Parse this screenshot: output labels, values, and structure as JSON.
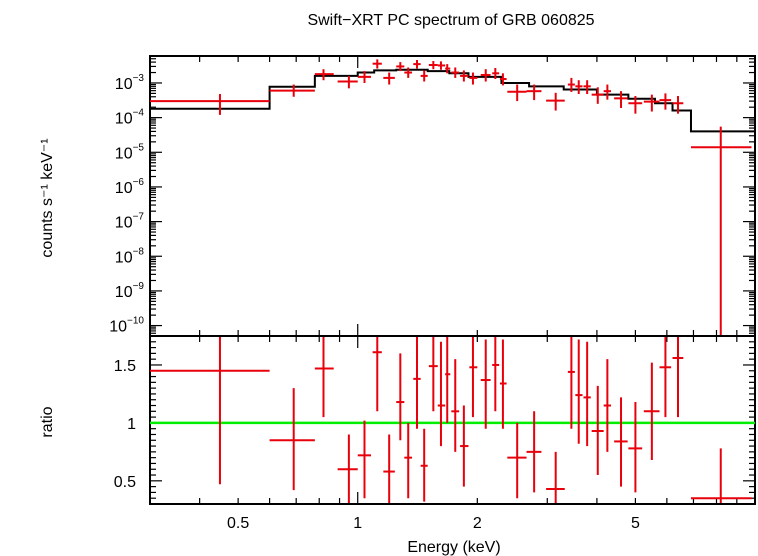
{
  "chart_data": [
    {
      "type": "scatter",
      "title": "Swift−XRT PC spectrum of GRB 060825",
      "ylabel": "counts s⁻¹ keV⁻¹",
      "xlabel": "",
      "x_scale": "log",
      "y_scale": "log",
      "xlim": [
        0.3,
        10
      ],
      "ylim": [
        5e-11,
        0.006
      ],
      "y_ticks": [
        {
          "value": 0.001,
          "base": "10",
          "exp": "−3"
        },
        {
          "value": 0.0001,
          "base": "10",
          "exp": "−4"
        },
        {
          "value": 1e-05,
          "base": "10",
          "exp": "−5"
        },
        {
          "value": 1e-06,
          "base": "10",
          "exp": "−6"
        },
        {
          "value": 1e-07,
          "base": "10",
          "exp": "−7"
        },
        {
          "value": 1e-08,
          "base": "10",
          "exp": "−8"
        },
        {
          "value": 1e-09,
          "base": "10",
          "exp": "−9"
        },
        {
          "value": 1e-10,
          "base": "10",
          "exp": "−10"
        }
      ],
      "data_color": "#e8000b",
      "model_color": "#000000",
      "data": [
        {
          "x": 0.45,
          "xlo": 0.3,
          "xhi": 0.6,
          "y": 0.0003,
          "ylo": 0.00012,
          "yhi": 0.00048
        },
        {
          "x": 0.69,
          "xlo": 0.6,
          "xhi": 0.78,
          "y": 0.0006,
          "ylo": 0.0004,
          "yhi": 0.0009
        },
        {
          "x": 0.82,
          "xlo": 0.78,
          "xhi": 0.87,
          "y": 0.0018,
          "ylo": 0.0012,
          "yhi": 0.0025
        },
        {
          "x": 0.95,
          "xlo": 0.89,
          "xhi": 1.0,
          "y": 0.0011,
          "ylo": 0.0007,
          "yhi": 0.0016
        },
        {
          "x": 1.04,
          "xlo": 1.0,
          "xhi": 1.08,
          "y": 0.0015,
          "ylo": 0.001,
          "yhi": 0.0022
        },
        {
          "x": 1.12,
          "xlo": 1.09,
          "xhi": 1.15,
          "y": 0.0036,
          "ylo": 0.0026,
          "yhi": 0.0048
        },
        {
          "x": 1.2,
          "xlo": 1.16,
          "xhi": 1.24,
          "y": 0.0014,
          "ylo": 0.0009,
          "yhi": 0.002
        },
        {
          "x": 1.28,
          "xlo": 1.25,
          "xhi": 1.31,
          "y": 0.003,
          "ylo": 0.0022,
          "yhi": 0.004
        },
        {
          "x": 1.34,
          "xlo": 1.31,
          "xhi": 1.37,
          "y": 0.002,
          "ylo": 0.0014,
          "yhi": 0.0028
        },
        {
          "x": 1.41,
          "xlo": 1.38,
          "xhi": 1.44,
          "y": 0.0035,
          "ylo": 0.0026,
          "yhi": 0.0046
        },
        {
          "x": 1.47,
          "xlo": 1.44,
          "xhi": 1.5,
          "y": 0.0016,
          "ylo": 0.0011,
          "yhi": 0.0023
        },
        {
          "x": 1.55,
          "xlo": 1.51,
          "xhi": 1.59,
          "y": 0.0033,
          "ylo": 0.0025,
          "yhi": 0.0043
        },
        {
          "x": 1.62,
          "xlo": 1.59,
          "xhi": 1.66,
          "y": 0.0032,
          "ylo": 0.0024,
          "yhi": 0.0042
        },
        {
          "x": 1.68,
          "xlo": 1.66,
          "xhi": 1.71,
          "y": 0.0026,
          "ylo": 0.0019,
          "yhi": 0.0035
        },
        {
          "x": 1.76,
          "xlo": 1.72,
          "xhi": 1.8,
          "y": 0.002,
          "ylo": 0.0014,
          "yhi": 0.0028
        },
        {
          "x": 1.85,
          "xlo": 1.81,
          "xhi": 1.9,
          "y": 0.0016,
          "ylo": 0.0011,
          "yhi": 0.0023
        },
        {
          "x": 1.95,
          "xlo": 1.91,
          "xhi": 2.0,
          "y": 0.0014,
          "ylo": 0.0009,
          "yhi": 0.002
        },
        {
          "x": 2.1,
          "xlo": 2.04,
          "xhi": 2.16,
          "y": 0.0017,
          "ylo": 0.0011,
          "yhi": 0.0025
        },
        {
          "x": 2.22,
          "xlo": 2.18,
          "xhi": 2.27,
          "y": 0.0019,
          "ylo": 0.0013,
          "yhi": 0.0027
        },
        {
          "x": 2.32,
          "xlo": 2.28,
          "xhi": 2.37,
          "y": 0.0013,
          "ylo": 0.00085,
          "yhi": 0.0019
        },
        {
          "x": 2.52,
          "xlo": 2.38,
          "xhi": 2.66,
          "y": 0.00056,
          "ylo": 0.0003,
          "yhi": 0.0009
        },
        {
          "x": 2.78,
          "xlo": 2.66,
          "xhi": 2.9,
          "y": 0.00058,
          "ylo": 0.00032,
          "yhi": 0.0009
        },
        {
          "x": 3.15,
          "xlo": 2.98,
          "xhi": 3.32,
          "y": 0.00031,
          "ylo": 0.00016,
          "yhi": 0.00052
        },
        {
          "x": 3.45,
          "xlo": 3.38,
          "xhi": 3.52,
          "y": 0.0009,
          "ylo": 0.00055,
          "yhi": 0.0014
        },
        {
          "x": 3.6,
          "xlo": 3.53,
          "xhi": 3.68,
          "y": 0.0008,
          "ylo": 0.00048,
          "yhi": 0.0012
        },
        {
          "x": 3.78,
          "xlo": 3.7,
          "xhi": 3.86,
          "y": 0.0008,
          "ylo": 0.00048,
          "yhi": 0.0012
        },
        {
          "x": 4.02,
          "xlo": 3.88,
          "xhi": 4.16,
          "y": 0.00046,
          "ylo": 0.00025,
          "yhi": 0.00075
        },
        {
          "x": 4.25,
          "xlo": 4.16,
          "xhi": 4.34,
          "y": 0.00058,
          "ylo": 0.00033,
          "yhi": 0.0009
        },
        {
          "x": 4.6,
          "xlo": 4.42,
          "xhi": 4.78,
          "y": 0.00036,
          "ylo": 0.00019,
          "yhi": 0.00058
        },
        {
          "x": 5.0,
          "xlo": 4.8,
          "xhi": 5.2,
          "y": 0.00026,
          "ylo": 0.00013,
          "yhi": 0.00042
        },
        {
          "x": 5.5,
          "xlo": 5.25,
          "xhi": 5.75,
          "y": 0.00029,
          "ylo": 0.00015,
          "yhi": 0.00046
        },
        {
          "x": 5.95,
          "xlo": 5.75,
          "xhi": 6.15,
          "y": 0.00032,
          "ylo": 0.00017,
          "yhi": 0.0005
        },
        {
          "x": 6.4,
          "xlo": 6.2,
          "xhi": 6.6,
          "y": 0.00026,
          "ylo": 0.00013,
          "yhi": 0.00042
        },
        {
          "x": 8.2,
          "xlo": 6.9,
          "xhi": 9.8,
          "y": 1.4e-05,
          "ylo": 5e-11,
          "yhi": 5.5e-05
        }
      ],
      "model": [
        {
          "x0": 0.3,
          "x1": 0.6,
          "y": 0.00018
        },
        {
          "x0": 0.6,
          "x1": 0.78,
          "y": 0.00078
        },
        {
          "x0": 0.78,
          "x1": 1.0,
          "y": 0.0016
        },
        {
          "x0": 1.0,
          "x1": 1.1,
          "y": 0.002
        },
        {
          "x0": 1.1,
          "x1": 1.25,
          "y": 0.0023
        },
        {
          "x0": 1.25,
          "x1": 1.5,
          "y": 0.0024
        },
        {
          "x0": 1.5,
          "x1": 1.7,
          "y": 0.0022
        },
        {
          "x0": 1.7,
          "x1": 1.9,
          "y": 0.0019
        },
        {
          "x0": 1.9,
          "x1": 2.3,
          "y": 0.0015
        },
        {
          "x0": 2.3,
          "x1": 2.7,
          "y": 0.001
        },
        {
          "x0": 2.7,
          "x1": 3.3,
          "y": 0.0008
        },
        {
          "x0": 3.3,
          "x1": 4.0,
          "y": 0.00065
        },
        {
          "x0": 4.0,
          "x1": 4.8,
          "y": 0.00046
        },
        {
          "x0": 4.8,
          "x1": 5.6,
          "y": 0.00035
        },
        {
          "x0": 5.6,
          "x1": 6.2,
          "y": 0.00026
        },
        {
          "x0": 6.2,
          "x1": 6.9,
          "y": 0.00016
        },
        {
          "x0": 6.9,
          "x1": 10.0,
          "y": 4e-05
        }
      ]
    },
    {
      "type": "scatter",
      "title": "",
      "ylabel": "ratio",
      "xlabel": "Energy (keV)",
      "x_scale": "log",
      "y_scale": "linear",
      "xlim": [
        0.3,
        10
      ],
      "ylim": [
        0.3,
        1.75
      ],
      "x_ticks": [
        {
          "value": 0.5,
          "label": "0.5"
        },
        {
          "value": 1,
          "label": "1"
        },
        {
          "value": 2,
          "label": "2"
        },
        {
          "value": 5,
          "label": "5"
        }
      ],
      "y_ticks": [
        {
          "value": 0.5,
          "label": "0.5"
        },
        {
          "value": 1,
          "label": "1"
        },
        {
          "value": 1.5,
          "label": "1.5"
        }
      ],
      "reference_line": {
        "y": 1,
        "color": "#00ee00"
      },
      "data_color": "#e8000b",
      "data": [
        {
          "x": 0.45,
          "xlo": 0.3,
          "xhi": 0.6,
          "y": 1.45,
          "ylo": 0.47,
          "yhi": 1.75
        },
        {
          "x": 0.69,
          "xlo": 0.6,
          "xhi": 0.78,
          "y": 0.85,
          "ylo": 0.42,
          "yhi": 1.3
        },
        {
          "x": 0.82,
          "xlo": 0.78,
          "xhi": 0.87,
          "y": 1.47,
          "ylo": 1.05,
          "yhi": 1.75
        },
        {
          "x": 0.95,
          "xlo": 0.89,
          "xhi": 1.0,
          "y": 0.6,
          "ylo": 0.3,
          "yhi": 0.9
        },
        {
          "x": 1.04,
          "xlo": 1.0,
          "xhi": 1.08,
          "y": 0.72,
          "ylo": 0.35,
          "yhi": 1.02
        },
        {
          "x": 1.12,
          "xlo": 1.09,
          "xhi": 1.15,
          "y": 1.61,
          "ylo": 1.1,
          "yhi": 1.75
        },
        {
          "x": 1.2,
          "xlo": 1.16,
          "xhi": 1.24,
          "y": 0.58,
          "ylo": 0.3,
          "yhi": 0.9
        },
        {
          "x": 1.28,
          "xlo": 1.25,
          "xhi": 1.31,
          "y": 1.18,
          "ylo": 0.85,
          "yhi": 1.6
        },
        {
          "x": 1.34,
          "xlo": 1.31,
          "xhi": 1.37,
          "y": 0.7,
          "ylo": 0.35,
          "yhi": 1.0
        },
        {
          "x": 1.41,
          "xlo": 1.38,
          "xhi": 1.44,
          "y": 1.38,
          "ylo": 0.95,
          "yhi": 1.75
        },
        {
          "x": 1.47,
          "xlo": 1.44,
          "xhi": 1.5,
          "y": 0.63,
          "ylo": 0.32,
          "yhi": 0.95
        },
        {
          "x": 1.55,
          "xlo": 1.51,
          "xhi": 1.59,
          "y": 1.49,
          "ylo": 1.1,
          "yhi": 1.75
        },
        {
          "x": 1.62,
          "xlo": 1.59,
          "xhi": 1.66,
          "y": 1.15,
          "ylo": 0.8,
          "yhi": 1.7
        },
        {
          "x": 1.68,
          "xlo": 1.66,
          "xhi": 1.71,
          "y": 1.42,
          "ylo": 1.0,
          "yhi": 1.75
        },
        {
          "x": 1.76,
          "xlo": 1.72,
          "xhi": 1.8,
          "y": 1.1,
          "ylo": 0.75,
          "yhi": 1.55
        },
        {
          "x": 1.85,
          "xlo": 1.81,
          "xhi": 1.9,
          "y": 0.8,
          "ylo": 0.45,
          "yhi": 1.15
        },
        {
          "x": 1.95,
          "xlo": 1.91,
          "xhi": 2.0,
          "y": 1.48,
          "ylo": 1.05,
          "yhi": 1.75
        },
        {
          "x": 2.1,
          "xlo": 2.04,
          "xhi": 2.16,
          "y": 1.37,
          "ylo": 0.95,
          "yhi": 1.72
        },
        {
          "x": 2.22,
          "xlo": 2.18,
          "xhi": 2.27,
          "y": 1.5,
          "ylo": 1.1,
          "yhi": 1.75
        },
        {
          "x": 2.32,
          "xlo": 2.28,
          "xhi": 2.37,
          "y": 1.34,
          "ylo": 0.95,
          "yhi": 1.72
        },
        {
          "x": 2.52,
          "xlo": 2.38,
          "xhi": 2.66,
          "y": 0.7,
          "ylo": 0.35,
          "yhi": 1.0
        },
        {
          "x": 2.78,
          "xlo": 2.66,
          "xhi": 2.9,
          "y": 0.75,
          "ylo": 0.4,
          "yhi": 1.1
        },
        {
          "x": 3.15,
          "xlo": 2.98,
          "xhi": 3.32,
          "y": 0.43,
          "ylo": 0.3,
          "yhi": 0.75
        },
        {
          "x": 3.45,
          "xlo": 3.38,
          "xhi": 3.52,
          "y": 1.44,
          "ylo": 0.95,
          "yhi": 1.75
        },
        {
          "x": 3.6,
          "xlo": 3.53,
          "xhi": 3.68,
          "y": 1.24,
          "ylo": 0.82,
          "yhi": 1.72
        },
        {
          "x": 3.78,
          "xlo": 3.7,
          "xhi": 3.86,
          "y": 1.22,
          "ylo": 0.8,
          "yhi": 1.7
        },
        {
          "x": 4.02,
          "xlo": 3.88,
          "xhi": 4.16,
          "y": 0.93,
          "ylo": 0.55,
          "yhi": 1.32
        },
        {
          "x": 4.25,
          "xlo": 4.16,
          "xhi": 4.34,
          "y": 1.15,
          "ylo": 0.75,
          "yhi": 1.55
        },
        {
          "x": 4.6,
          "xlo": 4.42,
          "xhi": 4.78,
          "y": 0.84,
          "ylo": 0.45,
          "yhi": 1.22
        },
        {
          "x": 5.0,
          "xlo": 4.8,
          "xhi": 5.2,
          "y": 0.78,
          "ylo": 0.4,
          "yhi": 1.18
        },
        {
          "x": 5.5,
          "xlo": 5.25,
          "xhi": 5.75,
          "y": 1.1,
          "ylo": 0.68,
          "yhi": 1.52
        },
        {
          "x": 5.95,
          "xlo": 5.75,
          "xhi": 6.15,
          "y": 1.48,
          "ylo": 1.05,
          "yhi": 1.75
        },
        {
          "x": 6.4,
          "xlo": 6.2,
          "xhi": 6.6,
          "y": 1.56,
          "ylo": 1.05,
          "yhi": 1.75
        },
        {
          "x": 8.2,
          "xlo": 6.9,
          "xhi": 9.8,
          "y": 0.35,
          "ylo": 0.3,
          "yhi": 0.78
        }
      ]
    }
  ]
}
